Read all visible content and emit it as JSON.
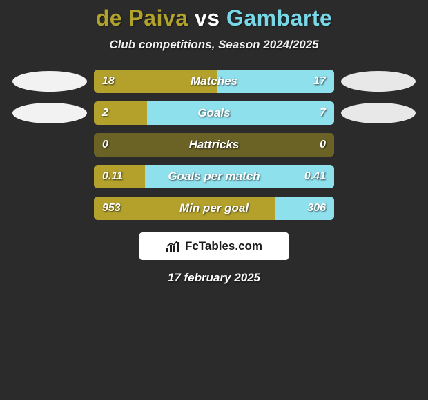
{
  "title": {
    "player1": "de Paiva",
    "vs": "vs",
    "player2": "Gambarte",
    "color_p1": "#b0a22a",
    "color_vs": "#ffffff",
    "color_p2": "#78d8e8"
  },
  "subtitle": "Club competitions, Season 2024/2025",
  "colors": {
    "p1": "#b3a12c",
    "p2": "#8fe0ed",
    "bar_bg_dim": "#6b6326",
    "ellipse_p1": "#f2f2f2",
    "ellipse_p2": "#e8e8e8"
  },
  "bars": [
    {
      "label": "Matches",
      "left_val": "18",
      "right_val": "17",
      "left_pct": 51.4,
      "right_pct": 48.6,
      "show_ellipse": true
    },
    {
      "label": "Goals",
      "left_val": "2",
      "right_val": "7",
      "left_pct": 22.2,
      "right_pct": 77.8,
      "show_ellipse": true
    },
    {
      "label": "Hattricks",
      "left_val": "0",
      "right_val": "0",
      "left_pct": 100,
      "right_pct": 0,
      "left_dim": true,
      "show_ellipse": false
    },
    {
      "label": "Goals per match",
      "left_val": "0.11",
      "right_val": "0.41",
      "left_pct": 21.2,
      "right_pct": 78.8,
      "show_ellipse": false
    },
    {
      "label": "Min per goal",
      "left_val": "953",
      "right_val": "306",
      "left_pct": 75.7,
      "right_pct": 24.3,
      "show_ellipse": false
    }
  ],
  "brand": "FcTables.com",
  "date": "17 february 2025"
}
